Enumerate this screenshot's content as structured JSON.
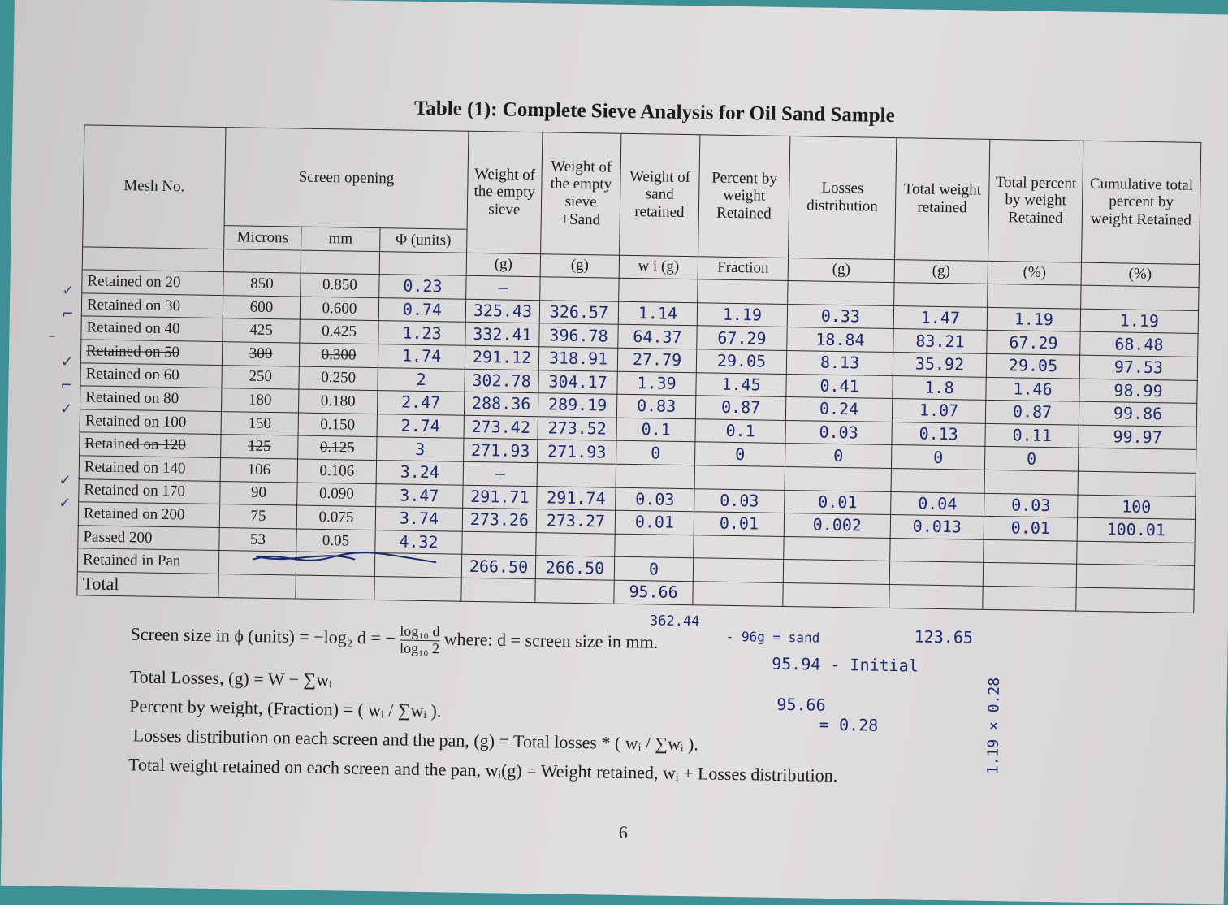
{
  "title": "Table (1): Complete Sieve Analysis for Oil Sand Sample",
  "headers": {
    "mesh": "Mesh No.",
    "screen_opening": "Screen opening",
    "microns": "Microns",
    "mm": "mm",
    "phi": "Φ (units)",
    "empty_sieve": "Weight of the empty sieve",
    "empty_sieve_unit": "(g)",
    "sieve_sand": "Weight of the empty sieve +Sand",
    "sieve_sand_unit": "(g)",
    "sand_retained": "Weight of sand retained",
    "sand_retained_unit": "w i (g)",
    "percent": "Percent by weight Retained",
    "percent_unit": "Fraction",
    "losses": "Losses distribution",
    "losses_unit": "(g)",
    "total_weight": "Total weight retained",
    "total_weight_unit": "(g)",
    "total_percent": "Total percent by weight Retained",
    "total_percent_unit": "(%)",
    "cumulative": "Cumulative total percent by weight Retained",
    "cumulative_unit": "(%)"
  },
  "rows": [
    {
      "mesh": "Retained on 20",
      "microns": "850",
      "mm": "0.850",
      "phi": "0.23",
      "empty": "—",
      "sand": "",
      "wi": "",
      "frac": "",
      "loss": "",
      "total": "",
      "pct": "",
      "cum": "",
      "strike": false
    },
    {
      "mesh": "Retained on 30",
      "microns": "600",
      "mm": "0.600",
      "phi": "0.74",
      "empty": "325.43",
      "sand": "326.57",
      "wi": "1.14",
      "frac": "1.19",
      "loss": "0.33",
      "total": "1.47",
      "pct": "1.19",
      "cum": "1.19",
      "strike": false
    },
    {
      "mesh": "Retained on 40",
      "microns": "425",
      "mm": "0.425",
      "phi": "1.23",
      "empty": "332.41",
      "sand": "396.78",
      "wi": "64.37",
      "frac": "67.29",
      "loss": "18.84",
      "total": "83.21",
      "pct": "67.29",
      "cum": "68.48",
      "strike": false
    },
    {
      "mesh": "Retained on 50",
      "microns": "300",
      "mm": "0.300",
      "phi": "1.74",
      "empty": "291.12",
      "sand": "318.91",
      "wi": "27.79",
      "frac": "29.05",
      "loss": "8.13",
      "total": "35.92",
      "pct": "29.05",
      "cum": "97.53",
      "strike": true
    },
    {
      "mesh": "Retained on 60",
      "microns": "250",
      "mm": "0.250",
      "phi": "2",
      "empty": "302.78",
      "sand": "304.17",
      "wi": "1.39",
      "frac": "1.45",
      "loss": "0.41",
      "total": "1.8",
      "pct": "1.46",
      "cum": "98.99",
      "strike": false
    },
    {
      "mesh": "Retained on 80",
      "microns": "180",
      "mm": "0.180",
      "phi": "2.47",
      "empty": "288.36",
      "sand": "289.19",
      "wi": "0.83",
      "frac": "0.87",
      "loss": "0.24",
      "total": "1.07",
      "pct": "0.87",
      "cum": "99.86",
      "strike": false
    },
    {
      "mesh": "Retained on 100",
      "microns": "150",
      "mm": "0.150",
      "phi": "2.74",
      "empty": "273.42",
      "sand": "273.52",
      "wi": "0.1",
      "frac": "0.1",
      "loss": "0.03",
      "total": "0.13",
      "pct": "0.11",
      "cum": "99.97",
      "strike": false
    },
    {
      "mesh": "Retained on 120",
      "microns": "125",
      "mm": "0.125",
      "phi": "3",
      "empty": "271.93",
      "sand": "271.93",
      "wi": "0",
      "frac": "0",
      "loss": "0",
      "total": "0",
      "pct": "0",
      "cum": "",
      "strike": true
    },
    {
      "mesh": "Retained on 140",
      "microns": "106",
      "mm": "0.106",
      "phi": "3.24",
      "empty": "—",
      "sand": "",
      "wi": "",
      "frac": "",
      "loss": "",
      "total": "",
      "pct": "",
      "cum": "",
      "strike": false
    },
    {
      "mesh": "Retained on 170",
      "microns": "90",
      "mm": "0.090",
      "phi": "3.47",
      "empty": "291.71",
      "sand": "291.74",
      "wi": "0.03",
      "frac": "0.03",
      "loss": "0.01",
      "total": "0.04",
      "pct": "0.03",
      "cum": "100",
      "strike": false
    },
    {
      "mesh": "Retained on 200",
      "microns": "75",
      "mm": "0.075",
      "phi": "3.74",
      "empty": "273.26",
      "sand": "273.27",
      "wi": "0.01",
      "frac": "0.01",
      "loss": "0.002",
      "total": "0.013",
      "pct": "0.01",
      "cum": "100.01",
      "strike": false
    },
    {
      "mesh": "Passed 200",
      "microns": "53",
      "mm": "0.05",
      "phi": "4.32",
      "empty": "",
      "sand": "",
      "wi": "",
      "frac": "",
      "loss": "",
      "total": "",
      "pct": "",
      "cum": "",
      "strike": false
    },
    {
      "mesh": "Retained in Pan",
      "microns": "",
      "mm": "",
      "phi": "",
      "empty": "266.50",
      "sand": "266.50",
      "wi": "0",
      "frac": "",
      "loss": "",
      "total": "",
      "pct": "",
      "cum": "",
      "strike": false
    },
    {
      "mesh": "Total",
      "microns": "",
      "mm": "",
      "phi": "",
      "empty": "",
      "sand": "",
      "wi": "95.66",
      "frac": "",
      "loss": "",
      "total": "",
      "pct": "",
      "cum": "",
      "strike": false
    }
  ],
  "footer": {
    "line1_prefix": "Screen size in ϕ (units) = −log₂ d = −",
    "line1_num": "log₁₀ d",
    "line1_den": "log₁₀ 2",
    "line1_suffix": "where: d = screen size in mm.",
    "line2": "Total Losses, (g) = W − ∑wᵢ",
    "line3": "Percent by weight, (Fraction) = ( wᵢ / ∑wᵢ ).",
    "line4": "Losses distribution on each screen and the pan, (g) = Total losses * ( wᵢ / ∑wᵢ ).",
    "line5": "Total weight retained on each screen and the pan, wᵢ(g) = Weight retained, wᵢ + Losses distribution."
  },
  "notes": {
    "n1": "362.44",
    "n2": "- 96g = sand",
    "n3": "95.94 - Initial",
    "n4": "95.66",
    "n5": "= 0.28",
    "n6": "123.65",
    "n7": "1.19 × 0.28"
  },
  "page_number": "6"
}
